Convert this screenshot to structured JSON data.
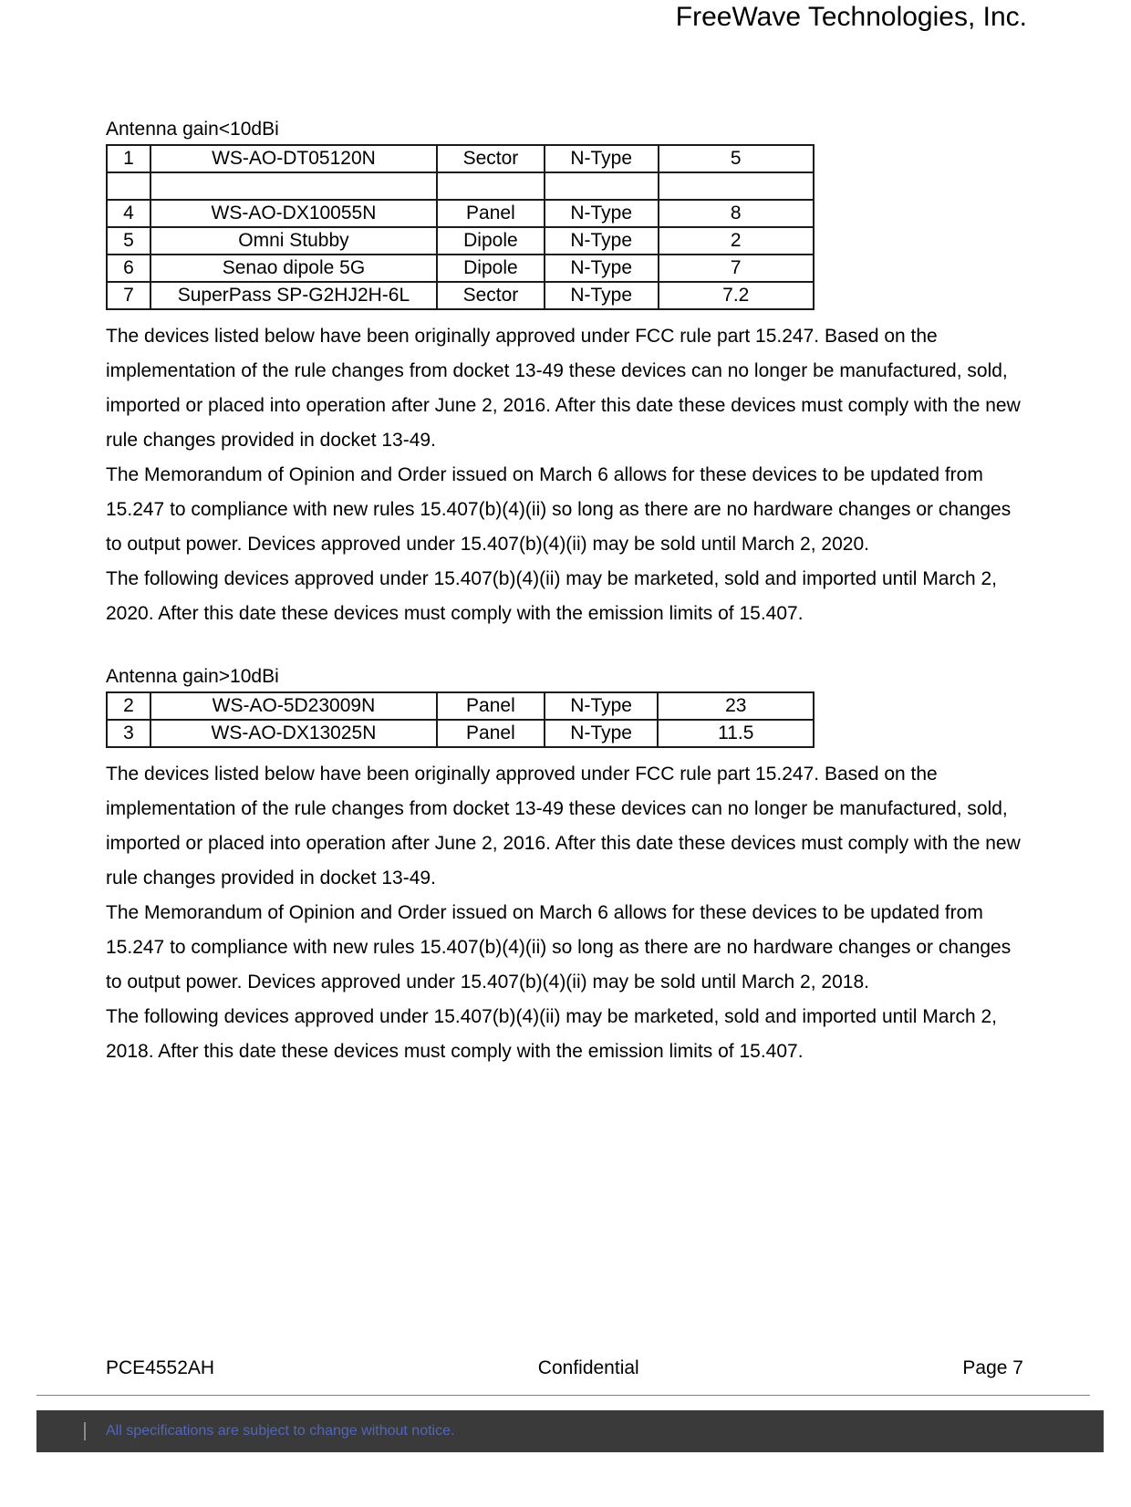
{
  "header": {
    "company": "FreeWave Technologies, Inc."
  },
  "section1": {
    "label": "Antenna gain<10dBi",
    "rows": [
      {
        "n": "1",
        "model": "WS-AO-DT05120N",
        "type": "Sector",
        "conn": "N-Type",
        "gain": "5"
      },
      {
        "n": "4",
        "model": "WS-AO-DX10055N",
        "type": "Panel",
        "conn": "N-Type",
        "gain": "8"
      },
      {
        "n": "5",
        "model": "Omni Stubby",
        "type": "Dipole",
        "conn": "N-Type",
        "gain": "2"
      },
      {
        "n": "6",
        "model": "Senao dipole 5G",
        "type": "Dipole",
        "conn": "N-Type",
        "gain": "7"
      },
      {
        "n": "7",
        "model": "SuperPass SP-G2HJ2H-6L",
        "type": "Sector",
        "conn": "N-Type",
        "gain": "7.2"
      }
    ],
    "para": "The devices listed below have been originally approved under FCC rule part 15.247.   Based on the implementation of the rule changes from docket 13-49 these devices can no longer be manufactured, sold, imported or placed into operation after June 2, 2016.   After this date these devices must comply with the new rule changes provided in docket 13-49.\nThe Memorandum of Opinion and Order issued on March 6 allows for these devices to be updated from 15.247 to compliance with new rules 15.407(b)(4)(ii) so long as there are no hardware changes or changes to output power.   Devices approved under 15.407(b)(4)(ii) may be sold until March 2, 2020.\nThe following devices approved under 15.407(b)(4)(ii) may be marketed, sold and imported until March 2, 2020.   After this date these devices must comply with the emission limits of 15.407."
  },
  "section2": {
    "label": "Antenna gain>10dBi",
    "rows": [
      {
        "n": "2",
        "model": "WS-AO-5D23009N",
        "type": "Panel",
        "conn": "N-Type",
        "gain": "23"
      },
      {
        "n": "3",
        "model": "WS-AO-DX13025N",
        "type": "Panel",
        "conn": "N-Type",
        "gain": "11.5"
      }
    ],
    "para": "The devices listed below have been originally approved under FCC rule part 15.247.   Based on the implementation of the rule changes from docket 13-49 these devices can no longer be manufactured, sold, imported or placed into operation after June 2, 2016.   After this date these devices must comply with the new rule changes provided in docket 13-49.\nThe Memorandum of Opinion and Order issued on March 6 allows for these devices to be updated from 15.247 to compliance with new rules 15.407(b)(4)(ii) so long as there are no hardware changes or changes to output power.   Devices approved under 15.407(b)(4)(ii) may be sold until March 2, 2018.\nThe following devices approved under 15.407(b)(4)(ii) may be marketed, sold and imported until March 2, 2018.   After this date these devices must comply with the emission limits of 15.407."
  },
  "footer": {
    "left": "PCE4552AH",
    "center": "Confidential",
    "right": "Page 7",
    "barText": "All specifications are subject to change without notice."
  }
}
